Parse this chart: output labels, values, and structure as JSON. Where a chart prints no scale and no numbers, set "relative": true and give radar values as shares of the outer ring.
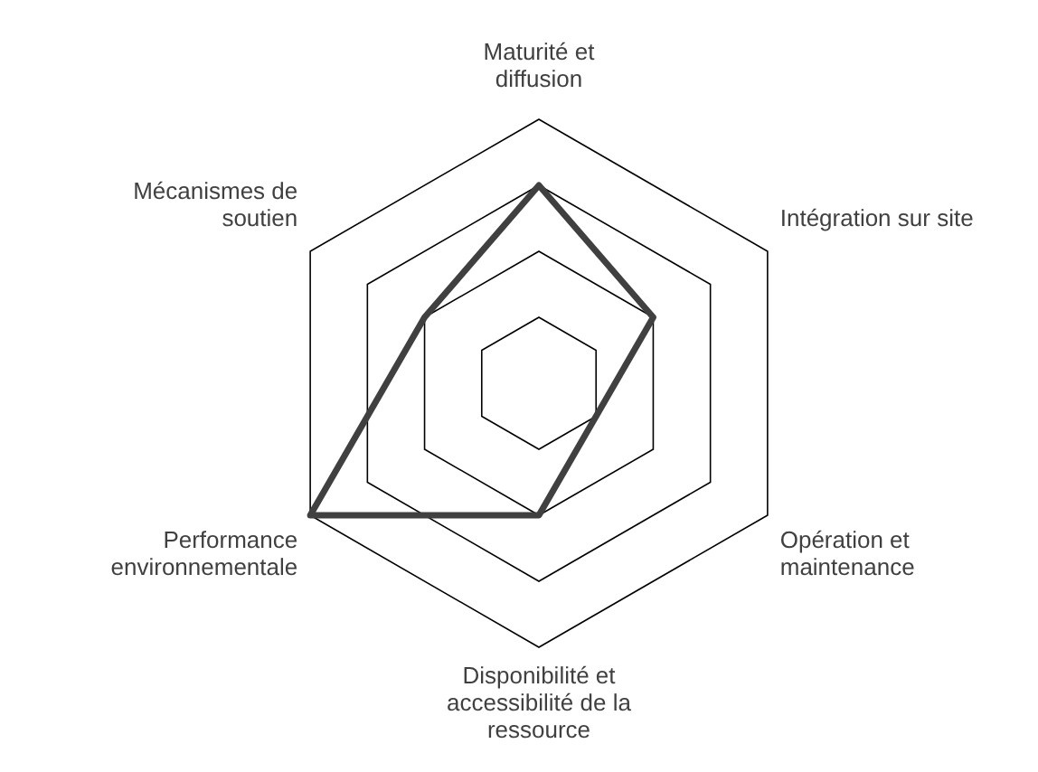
{
  "chart_data": {
    "type": "radar",
    "relative": true,
    "grid": true,
    "legend": false,
    "categories": [
      "Maturité et diffusion",
      "Intégration sur site",
      "Opération et maintenance",
      "Disponibilité et accessibilité de la ressource",
      "Performance environnementale",
      "Mécanismes de soutien"
    ],
    "series": [
      {
        "color": "#404040",
        "values": [
          0.75,
          0.5,
          0.25,
          0.5,
          1,
          0.5
        ]
      }
    ]
  }
}
